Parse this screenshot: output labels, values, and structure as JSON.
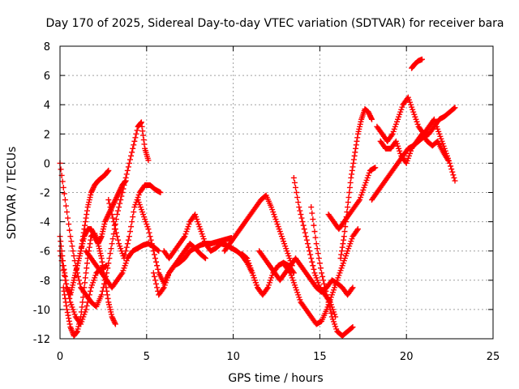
{
  "chart_data": {
    "type": "scatter",
    "title": "Day 170 of 2025, Sidereal Day-to-day VTEC variation (SDTVAR) for receiver bara",
    "xlabel": "GPS time / hours",
    "ylabel": "SDTVAR / TECUs",
    "xlim": [
      0,
      25
    ],
    "ylim": [
      -12,
      8
    ],
    "x_ticks": [
      "0",
      "5",
      "10",
      "15",
      "20",
      "25"
    ],
    "y_ticks": [
      "-12",
      "-10",
      "-8",
      "-6",
      "-4",
      "-2",
      "0",
      "2",
      "4",
      "6",
      "8"
    ],
    "grid": true,
    "marker": "+",
    "color": "#ff0000",
    "series": [
      {
        "x": [
          0.0,
          0.3,
          0.6,
          0.9,
          1.2,
          1.5,
          1.8,
          2.1,
          2.4,
          2.7,
          3.0,
          3.3,
          3.6,
          3.9,
          4.2,
          4.5,
          4.7,
          4.9,
          5.1
        ],
        "y": [
          0.0,
          -2.5,
          -5.0,
          -7.0,
          -8.5,
          -9.0,
          -9.5,
          -9.8,
          -9.0,
          -7.5,
          -5.5,
          -3.5,
          -2.0,
          -0.5,
          1.0,
          2.5,
          2.8,
          1.0,
          0.2
        ]
      },
      {
        "x": [
          0.0,
          0.2,
          0.4,
          0.6,
          0.8,
          1.0,
          1.2,
          1.4,
          1.6,
          1.8,
          2.0,
          2.2,
          2.4,
          2.6,
          2.8
        ],
        "y": [
          -5.0,
          -7.0,
          -8.5,
          -9.0,
          -8.0,
          -7.0,
          -6.0,
          -4.5,
          -3.0,
          -2.0,
          -1.5,
          -1.2,
          -1.0,
          -0.8,
          -0.5
        ]
      },
      {
        "x": [
          0.0,
          0.3,
          0.6,
          0.9,
          1.2,
          1.5,
          1.8,
          2.1,
          2.4,
          2.7
        ],
        "y": [
          -6.0,
          -8.0,
          -9.5,
          -10.5,
          -11.0,
          -10.0,
          -8.5,
          -7.5,
          -7.2,
          -7.0
        ]
      },
      {
        "x": [
          0.2,
          0.4,
          0.6,
          0.8,
          1.0,
          1.2,
          1.4,
          1.6,
          1.8,
          2.0,
          2.2,
          2.4,
          2.6,
          2.8,
          3.0,
          3.2
        ],
        "y": [
          -8.5,
          -10.0,
          -11.2,
          -11.8,
          -11.5,
          -10.5,
          -8.5,
          -6.5,
          -5.0,
          -4.8,
          -5.5,
          -6.5,
          -8.0,
          -9.5,
          -10.5,
          -11.0
        ]
      },
      {
        "x": [
          0.8,
          1.0,
          1.2,
          1.4,
          1.6,
          1.8,
          2.0,
          2.2,
          2.4,
          2.6,
          2.8,
          3.0,
          3.2,
          3.4,
          3.6,
          3.8
        ],
        "y": [
          -8.0,
          -7.0,
          -6.0,
          -5.0,
          -4.5,
          -4.5,
          -5.0,
          -5.5,
          -5.0,
          -4.0,
          -3.5,
          -3.0,
          -2.5,
          -2.0,
          -1.5,
          -1.2
        ]
      },
      {
        "x": [
          1.5,
          1.8,
          2.1,
          2.4,
          2.7,
          3.0,
          3.3,
          3.6,
          3.9,
          4.2,
          4.5,
          4.8,
          5.1,
          5.4,
          5.7
        ],
        "y": [
          -6.0,
          -6.5,
          -7.0,
          -7.5,
          -8.0,
          -8.5,
          -8.0,
          -7.5,
          -6.5,
          -6.0,
          -5.8,
          -5.6,
          -5.5,
          -5.7,
          -6.0
        ]
      },
      {
        "x": [
          2.8,
          3.1,
          3.4,
          3.7,
          4.0,
          4.3,
          4.6,
          4.9,
          5.2,
          5.5,
          5.8
        ],
        "y": [
          -2.5,
          -4.0,
          -5.5,
          -6.5,
          -5.0,
          -3.0,
          -2.0,
          -1.5,
          -1.5,
          -1.8,
          -2.0
        ]
      },
      {
        "x": [
          4.5,
          4.8,
          5.1,
          5.4,
          5.7,
          6.0,
          6.3,
          6.6,
          6.9,
          7.2,
          7.5,
          7.8,
          8.1,
          8.4,
          8.7,
          9.0,
          9.3,
          9.6,
          9.9
        ],
        "y": [
          -2.5,
          -3.5,
          -4.5,
          -6.0,
          -7.5,
          -8.2,
          -7.5,
          -7.0,
          -6.8,
          -6.5,
          -6.0,
          -5.8,
          -5.6,
          -5.5,
          -5.5,
          -5.4,
          -5.3,
          -5.2,
          -5.1
        ]
      },
      {
        "x": [
          5.4,
          5.7,
          6.0,
          6.3,
          6.6,
          6.9,
          7.2,
          7.5,
          7.8,
          8.1,
          8.4
        ],
        "y": [
          -7.5,
          -9.0,
          -8.5,
          -7.5,
          -7.0,
          -6.5,
          -6.0,
          -5.5,
          -5.8,
          -6.2,
          -6.5
        ]
      },
      {
        "x": [
          6.0,
          6.3,
          6.6,
          6.9,
          7.2,
          7.5,
          7.8,
          8.1,
          8.4,
          8.7,
          9.0,
          9.3,
          9.6,
          9.9,
          10.2,
          10.5,
          10.8,
          11.1,
          11.4
        ],
        "y": [
          -6.0,
          -6.5,
          -6.0,
          -5.5,
          -5.0,
          -4.0,
          -3.5,
          -4.5,
          -5.5,
          -6.0,
          -5.8,
          -5.5,
          -5.6,
          -5.8,
          -6.0,
          -6.3,
          -6.8,
          -7.5,
          -8.5
        ]
      },
      {
        "x": [
          9.5,
          9.8,
          10.1,
          10.4,
          10.7,
          11.0,
          11.3,
          11.6,
          11.9,
          12.2,
          12.5,
          12.8,
          13.1,
          13.4
        ],
        "y": [
          -6.0,
          -5.5,
          -5.0,
          -4.5,
          -4.0,
          -3.5,
          -3.0,
          -2.5,
          -2.2,
          -3.0,
          -4.0,
          -5.0,
          -6.0,
          -7.0
        ]
      },
      {
        "x": [
          10.5,
          10.8,
          11.1,
          11.4,
          11.7,
          12.0,
          12.3,
          12.6,
          12.9,
          13.2,
          13.5
        ],
        "y": [
          -6.2,
          -6.5,
          -7.5,
          -8.5,
          -9.0,
          -8.5,
          -7.5,
          -7.0,
          -6.8,
          -7.0,
          -7.5
        ]
      },
      {
        "x": [
          11.5,
          11.8,
          12.1,
          12.4,
          12.7,
          13.0,
          13.3,
          13.6,
          13.9,
          14.2,
          14.5,
          14.8,
          15.1,
          15.4,
          15.7,
          16.0,
          16.3,
          16.6,
          16.9
        ],
        "y": [
          -6.0,
          -6.5,
          -7.0,
          -7.5,
          -8.0,
          -7.5,
          -7.0,
          -6.5,
          -7.0,
          -7.5,
          -8.0,
          -8.5,
          -8.8,
          -8.5,
          -8.0,
          -8.2,
          -8.5,
          -9.0,
          -8.5
        ]
      },
      {
        "x": [
          13.0,
          13.3,
          13.6,
          13.9,
          14.2,
          14.5,
          14.8,
          15.1,
          15.4,
          15.7,
          16.0,
          16.3,
          16.6,
          16.9,
          17.2
        ],
        "y": [
          -7.0,
          -7.5,
          -8.5,
          -9.5,
          -10.0,
          -10.5,
          -11.0,
          -10.8,
          -10.0,
          -9.0,
          -8.0,
          -7.0,
          -6.0,
          -5.0,
          -4.5
        ]
      },
      {
        "x": [
          13.5,
          13.8,
          14.1,
          14.4,
          14.7,
          15.0,
          15.3,
          15.6,
          15.9
        ],
        "y": [
          -1.0,
          -3.0,
          -4.5,
          -6.0,
          -7.5,
          -8.5,
          -9.0,
          -9.5,
          -10.5
        ]
      },
      {
        "x": [
          14.5,
          14.8,
          15.1,
          15.4,
          15.7,
          16.0,
          16.3,
          16.6,
          16.9
        ],
        "y": [
          -3.0,
          -5.5,
          -7.5,
          -9.0,
          -10.5,
          -11.5,
          -11.8,
          -11.5,
          -11.2
        ]
      },
      {
        "x": [
          15.5,
          15.8,
          16.1,
          16.4,
          16.7,
          17.0,
          17.3,
          17.6,
          17.9,
          18.2
        ],
        "y": [
          -3.5,
          -4.0,
          -4.5,
          -4.0,
          -3.5,
          -3.0,
          -2.5,
          -1.5,
          -0.5,
          -0.3
        ]
      },
      {
        "x": [
          16.2,
          16.4,
          16.6,
          16.8,
          17.0,
          17.2,
          17.4,
          17.6,
          17.8,
          18.0
        ],
        "y": [
          -6.5,
          -5.0,
          -3.0,
          -1.0,
          0.5,
          2.0,
          3.0,
          3.7,
          3.5,
          3.0
        ]
      },
      {
        "x": [
          18.0,
          18.3,
          18.6,
          18.9,
          19.2,
          19.5,
          19.8,
          20.1,
          20.4,
          20.7,
          21.0,
          21.3,
          21.6,
          21.9,
          22.2,
          22.5,
          22.8
        ],
        "y": [
          -2.5,
          -2.0,
          -1.5,
          -1.0,
          -0.5,
          0.0,
          0.5,
          1.0,
          1.2,
          1.5,
          1.8,
          2.0,
          2.5,
          3.0,
          3.2,
          3.5,
          3.8
        ]
      },
      {
        "x": [
          18.3,
          18.6,
          18.9,
          19.2,
          19.5,
          19.8,
          20.1,
          20.4,
          20.7,
          21.0,
          21.3,
          21.6,
          21.9,
          22.2,
          22.5,
          22.8
        ],
        "y": [
          2.5,
          2.0,
          1.5,
          2.0,
          3.0,
          4.0,
          4.5,
          3.5,
          2.5,
          2.0,
          2.5,
          3.0,
          2.0,
          1.0,
          0.0,
          -1.2
        ]
      },
      {
        "x": [
          18.5,
          18.8,
          19.1,
          19.4,
          19.7,
          20.0,
          20.3,
          20.6,
          20.9,
          21.2,
          21.5,
          21.8,
          22.1,
          22.4
        ],
        "y": [
          1.5,
          1.0,
          1.0,
          1.5,
          0.5,
          0.0,
          1.0,
          1.5,
          2.0,
          1.5,
          1.2,
          1.5,
          0.8,
          0.2
        ]
      },
      {
        "x": [
          20.3,
          20.5,
          20.7,
          20.9
        ],
        "y": [
          6.5,
          6.8,
          7.0,
          7.1
        ]
      }
    ]
  }
}
